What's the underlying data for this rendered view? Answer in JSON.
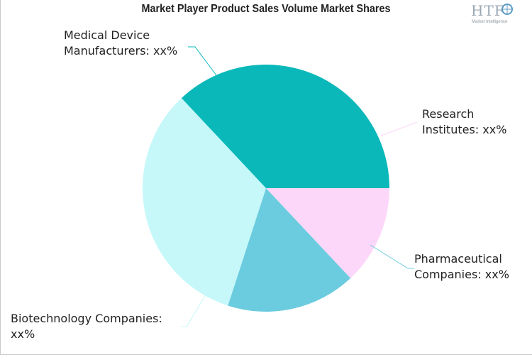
{
  "chart_data": {
    "type": "pie",
    "title": "Market Player Product Sales Volume Market Shares",
    "slices": [
      {
        "name": "Research Institutes",
        "label_line1": "Research",
        "label_line2": "Institutes: xx%",
        "value": 13,
        "color": "#fcd7f9"
      },
      {
        "name": "Pharmaceutical Companies",
        "label_line1": "Pharmaceutical",
        "label_line2": "Companies: xx%",
        "value": 17,
        "color": "#6cccdf"
      },
      {
        "name": "Biotechnology Companies",
        "label_line1": "Biotechnology Companies:",
        "label_line2": "xx%",
        "value": 33,
        "color": "#c6f8f9"
      },
      {
        "name": "Medical Device Manufacturers",
        "label_line1": "Medical Device",
        "label_line2": "Manufacturers: xx%",
        "value": 37,
        "color": "#0ab8b9"
      }
    ],
    "start_angle_deg": 0,
    "direction": "clockwise"
  },
  "logo": {
    "text": "HTF",
    "subtext": "Market Intelligence"
  }
}
